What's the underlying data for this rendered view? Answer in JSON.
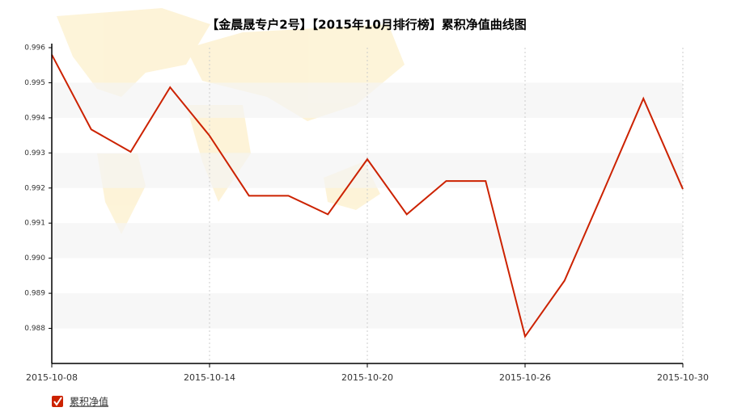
{
  "chart_data": {
    "type": "line",
    "title": "【金晨晟专户2号】【2015年10月排行榜】累积净值曲线图",
    "categories": [
      "2015-10-08",
      null,
      null,
      null,
      "2015-10-14",
      null,
      null,
      null,
      "2015-10-20",
      null,
      null,
      null,
      "2015-10-26",
      null,
      null,
      null,
      "2015-10-30"
    ],
    "series": [
      {
        "name": "累积净值",
        "color": "#cc2200",
        "values": [
          0.9958,
          0.99367,
          0.99303,
          0.99487,
          0.99349,
          0.99178,
          0.99178,
          0.99125,
          0.99282,
          0.99125,
          0.9922,
          0.9922,
          0.98777,
          0.98936,
          0.99194,
          0.99455,
          0.99197
        ]
      }
    ],
    "ylim": [
      0.987,
      0.996
    ],
    "yticks": [
      0.988,
      0.989,
      {
        "value": 0.99,
        "label": "0.990"
      },
      0.991,
      0.992,
      0.993,
      0.994,
      0.995,
      0.996
    ],
    "grid": true
  }
}
